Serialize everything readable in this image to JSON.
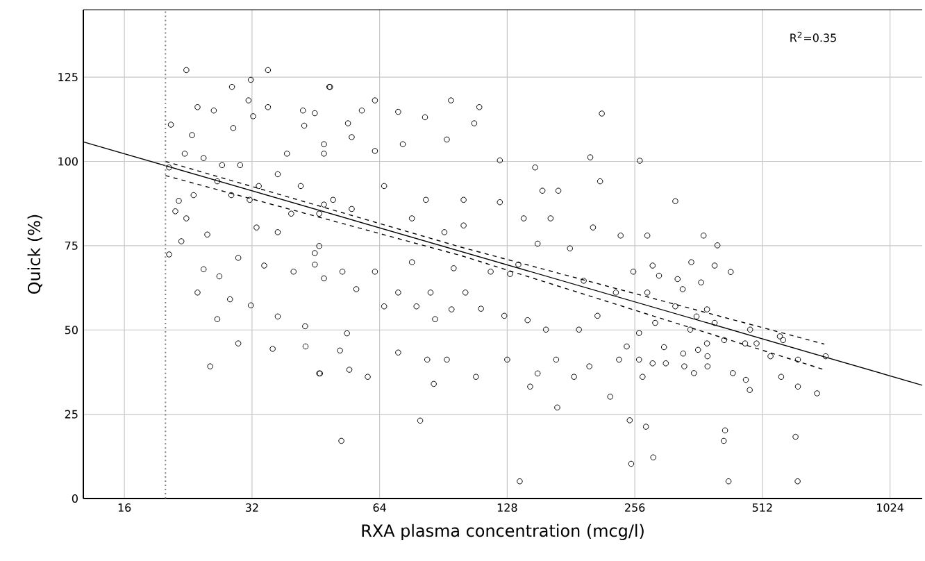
{
  "chart_data": {
    "type": "scatter",
    "xlabel": "RXA plasma concentration (mcg/l)",
    "ylabel": "Quick (%)",
    "annotations": [
      "R$^{2}$=0.35"
    ],
    "log": "x",
    "grid": true,
    "xlim": [
      12.8,
      1220
    ],
    "ylim": [
      0,
      145
    ],
    "xticks": [
      16,
      32,
      64,
      128,
      256,
      512,
      1024
    ],
    "yticks": [
      0,
      25,
      50,
      75,
      100,
      125
    ],
    "ref_lines": [
      {
        "axis": "x",
        "value": 20,
        "color": "#808080",
        "line_style": "dotted"
      }
    ],
    "series": [
      {
        "color": "#000000",
        "marker": "circle",
        "x": [
          22.4,
          28.7,
          31.8,
          34.9,
          34.9,
          26.0,
          23.8,
          20.6,
          31.4,
          32.2,
          42.2,
          48.7,
          20.4,
          20.4,
          21.1,
          21.8,
          22.4,
          23.8,
          25.5,
          26.5,
          29.7,
          28.4,
          31.8,
          24.6,
          26.8,
          29.7,
          35.8,
          36.8,
          42.8,
          42.7,
          46.1,
          34.2,
          40.1,
          36.8,
          39.6,
          45.0,
          46.1,
          32.8,
          28.6,
          31.6,
          26.5,
          23.3,
          21.5,
          25.1,
          36.8,
          38.7,
          42.5,
          47.3,
          41.7,
          47.3,
          22.2,
          24.6,
          27.2,
          30.0,
          33.2,
          28.9,
          23.1,
          48.9,
          62.4,
          94.3,
          110,
          214,
          70.8,
          81.9,
          58.1,
          53.9,
          45.0,
          107,
          92.2,
          72.6,
          55.0,
          62.4,
          47.3,
          123,
          201,
          149,
          212,
          155,
          169,
          123,
          101,
          82.3,
          65.6,
          55.0,
          49.7,
          46.1,
          162,
          204,
          140,
          101,
          76.3,
          91.0,
          151,
          180,
          45.0,
          62.4,
          52.3,
          47.3,
          76.3,
          95.7,
          117,
          130,
          136,
          194,
          231,
          70.8,
          56.4,
          84.4,
          102,
          65.6,
          78.2,
          94.6,
          111,
          126,
          143,
          189,
          209,
          158,
          53.6,
          86.5,
          70.8,
          51.6,
          54.3,
          60.0,
          46.3,
          82.9,
          92.2,
          108,
          85.9,
          128,
          151,
          145,
          167,
          184,
          200,
          168,
          224,
          79.8,
          52.0,
          137,
          263,
          319,
          237,
          274,
          372,
          401,
          431,
          395,
          348,
          282,
          254,
          323,
          367,
          292,
          332,
          274,
          319,
          379,
          358,
          395,
          286,
          262,
          346,
          479,
          379,
          466,
          496,
          563,
          573,
          416,
          300,
          361,
          380,
          535,
          621,
          722,
          262,
          333,
          235,
          303,
          335,
          380,
          282,
          245,
          436,
          353,
          267,
          468,
          478,
          567,
          621,
          689,
          249,
          272,
          418,
          415,
          613,
          251,
          283,
          426,
          620
        ],
        "values": [
          127.1,
          122.1,
          124.2,
          127.1,
          116.1,
          115.1,
          116.1,
          110.9,
          118.1,
          113.4,
          115.1,
          122.1,
          98.2,
          72.4,
          85.2,
          76.3,
          83.1,
          61.1,
          39.2,
          53.2,
          46.0,
          59.1,
          57.3,
          68.0,
          65.9,
          71.4,
          44.4,
          54.0,
          45.1,
          51.1,
          37.1,
          69.1,
          67.3,
          79.0,
          84.5,
          69.4,
          74.9,
          80.4,
          90.0,
          88.6,
          94.1,
          90.0,
          88.3,
          78.3,
          96.2,
          102.3,
          110.6,
          105.1,
          92.7,
          87.2,
          102.3,
          101.0,
          98.9,
          98.9,
          92.7,
          109.9,
          107.8,
          122.1,
          118.1,
          118.1,
          116.1,
          114.2,
          114.7,
          113.1,
          115.1,
          111.3,
          114.3,
          111.3,
          106.5,
          105.1,
          107.2,
          103.1,
          102.3,
          100.3,
          101.2,
          98.2,
          94.1,
          91.3,
          91.3,
          87.9,
          88.6,
          88.6,
          92.7,
          85.9,
          88.6,
          84.5,
          83.1,
          80.4,
          83.1,
          81.0,
          83.1,
          79.0,
          75.6,
          74.2,
          72.8,
          67.3,
          67.3,
          65.3,
          70.1,
          68.3,
          67.3,
          66.6,
          69.4,
          64.6,
          61.1,
          61.1,
          62.1,
          61.1,
          61.1,
          57.0,
          57.0,
          56.1,
          56.3,
          54.2,
          52.9,
          50.1,
          54.2,
          50.1,
          49.0,
          53.2,
          43.3,
          43.9,
          38.2,
          36.1,
          37.1,
          41.2,
          41.2,
          36.1,
          34.0,
          41.2,
          37.1,
          33.2,
          41.2,
          36.1,
          39.2,
          27.0,
          30.2,
          23.1,
          17.1,
          5.1,
          100.2,
          88.2,
          78.0,
          78.0,
          78.0,
          75.1,
          67.2,
          69.1,
          70.1,
          69.1,
          67.3,
          65.1,
          64.1,
          66.1,
          62.1,
          61.1,
          57.0,
          56.1,
          54.0,
          52.1,
          52.1,
          49.1,
          50.1,
          50.1,
          46.0,
          46.0,
          46.0,
          48.1,
          47.0,
          47.0,
          44.9,
          44.1,
          42.2,
          42.2,
          41.2,
          42.2,
          41.2,
          43.0,
          41.2,
          40.1,
          39.2,
          39.2,
          40.1,
          45.1,
          37.2,
          37.2,
          36.1,
          35.2,
          32.2,
          36.1,
          33.2,
          31.2,
          23.2,
          21.3,
          20.2,
          17.1,
          18.3,
          10.3,
          12.2,
          5.1,
          5.1
        ]
      },
      {
        "type": "line",
        "color": "#000000",
        "line_style": "solid",
        "x": [
          12.8,
          1220
        ],
        "values": [
          105.8,
          33.6
        ]
      },
      {
        "type": "line",
        "color": "#000000",
        "line_style": "dashed",
        "x": [
          20,
          100,
          717
        ],
        "values": [
          100.0,
          74.5,
          45.8
        ]
      },
      {
        "type": "line",
        "color": "#000000",
        "line_style": "dashed",
        "x": [
          20,
          100,
          717
        ],
        "values": [
          95.8,
          72.0,
          38.2
        ]
      }
    ]
  }
}
